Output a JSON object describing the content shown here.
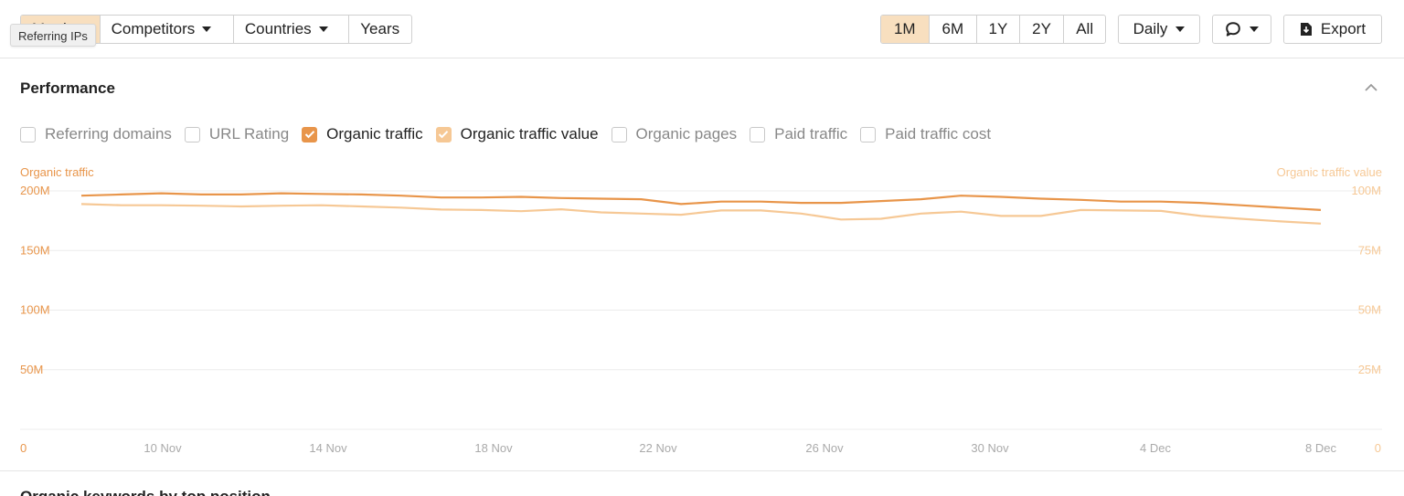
{
  "toolbar": {
    "left_group": {
      "metrics_label": "Metrics",
      "competitors_label": "Competitors",
      "countries_label": "Countries",
      "years_label": "Years"
    },
    "tooltip": "Referring IPs",
    "ranges": [
      "1M",
      "6M",
      "1Y",
      "2Y",
      "All"
    ],
    "active_range": "1M",
    "interval_label": "Daily",
    "export_label": "Export"
  },
  "performance": {
    "title": "Performance",
    "checkboxes": [
      {
        "label": "Referring domains",
        "checked": false
      },
      {
        "label": "URL Rating",
        "checked": false
      },
      {
        "label": "Organic traffic",
        "checked": true,
        "color": "#e8954a"
      },
      {
        "label": "Organic traffic value",
        "checked": true,
        "color": "#f6c895"
      },
      {
        "label": "Organic pages",
        "checked": false
      },
      {
        "label": "Paid traffic",
        "checked": false
      },
      {
        "label": "Paid traffic cost",
        "checked": false
      }
    ]
  },
  "chart_data": {
    "type": "line",
    "y_left_title": "Organic traffic",
    "y_right_title": "Organic traffic value",
    "y_left_ticks": [
      "0",
      "50M",
      "100M",
      "150M",
      "200M"
    ],
    "y_right_ticks": [
      "0",
      "25M",
      "50M",
      "75M",
      "100M"
    ],
    "ylim_left": [
      0,
      200000000
    ],
    "ylim_right": [
      0,
      100000000
    ],
    "x_ticks": [
      "10 Nov",
      "14 Nov",
      "18 Nov",
      "22 Nov",
      "26 Nov",
      "30 Nov",
      "4 Dec",
      "8 Dec"
    ],
    "x": [
      "8 Nov",
      "9 Nov",
      "10 Nov",
      "11 Nov",
      "12 Nov",
      "13 Nov",
      "14 Nov",
      "15 Nov",
      "16 Nov",
      "17 Nov",
      "18 Nov",
      "19 Nov",
      "20 Nov",
      "21 Nov",
      "22 Nov",
      "23 Nov",
      "24 Nov",
      "25 Nov",
      "26 Nov",
      "27 Nov",
      "28 Nov",
      "29 Nov",
      "30 Nov",
      "1 Dec",
      "2 Dec",
      "3 Dec",
      "4 Dec",
      "5 Dec",
      "6 Dec",
      "7 Dec",
      "8 Dec",
      "9 Dec"
    ],
    "series": [
      {
        "name": "Organic traffic",
        "axis": "left",
        "color": "#e8954a",
        "values": [
          196,
          197,
          198,
          197,
          197,
          198,
          197.5,
          197,
          196,
          194.5,
          194.5,
          195,
          194,
          193.5,
          193,
          189,
          191,
          191,
          190,
          190,
          191.5,
          193,
          196,
          195,
          193.5,
          192.5,
          191,
          191,
          190,
          188,
          186,
          184
        ]
      },
      {
        "name": "Organic traffic value",
        "axis": "right",
        "color": "#f6c895",
        "values": [
          94.5,
          94,
          94,
          93.8,
          93.5,
          93.8,
          94,
          93.5,
          93,
          92.2,
          92,
          91.5,
          92.3,
          91,
          90.5,
          90,
          91.8,
          91.8,
          90.5,
          88,
          88.3,
          90.5,
          91.3,
          89.5,
          89.5,
          92,
          91.8,
          91.6,
          89.5,
          88.3,
          87.2,
          86.3
        ]
      }
    ],
    "grid": true
  },
  "next_section": {
    "title": "Organic keywords by top position"
  }
}
